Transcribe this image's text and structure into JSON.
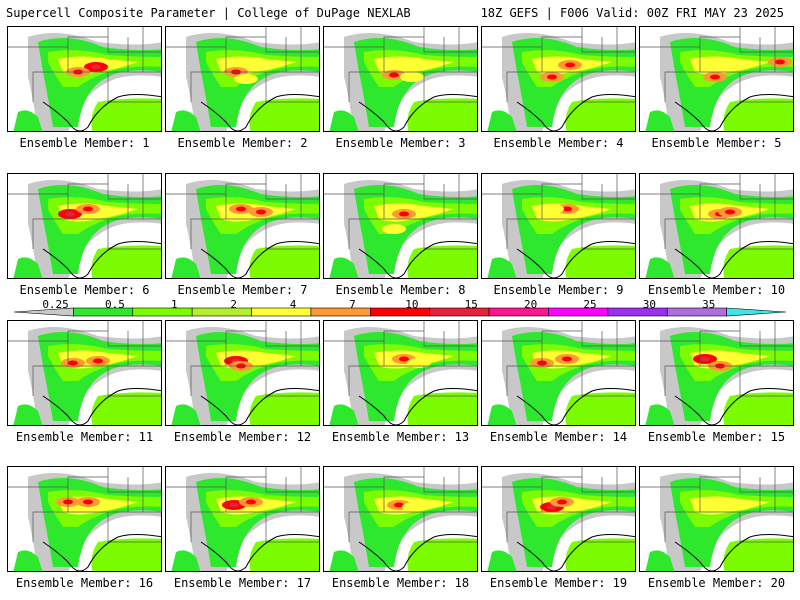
{
  "header": {
    "title": "Supercell Composite Parameter | College of DuPage NEXLAB",
    "valid": "18Z GEFS | F006 Valid: 00Z FRI MAY 23 2025"
  },
  "colorbar": {
    "levels": [
      "0.25",
      "0.5",
      "1",
      "2",
      "4",
      "7",
      "10",
      "15",
      "20",
      "25",
      "30",
      "35"
    ],
    "colors": [
      "#c8c8c8",
      "#2ee82e",
      "#7cfc00",
      "#b4f02a",
      "#ffff33",
      "#ff9933",
      "#ff0000",
      "#e8203c",
      "#ff1493",
      "#ff00ff",
      "#9a2ff0",
      "#b06edc",
      "#3ee6e6"
    ]
  },
  "panels": [
    {
      "label": "Ensemble Member: 1",
      "core": [
        {
          "x": 88,
          "y": 40,
          "v": 10
        },
        {
          "x": 70,
          "y": 45,
          "v": 7
        }
      ]
    },
    {
      "label": "Ensemble Member: 2",
      "core": [
        {
          "x": 70,
          "y": 45,
          "v": 7
        },
        {
          "x": 80,
          "y": 52,
          "v": 4
        }
      ]
    },
    {
      "label": "Ensemble Member: 3",
      "core": [
        {
          "x": 70,
          "y": 48,
          "v": 7
        },
        {
          "x": 88,
          "y": 50,
          "v": 4
        }
      ]
    },
    {
      "label": "Ensemble Member: 4",
      "core": [
        {
          "x": 88,
          "y": 38,
          "v": 7
        },
        {
          "x": 70,
          "y": 50,
          "v": 7
        }
      ]
    },
    {
      "label": "Ensemble Member: 5",
      "core": [
        {
          "x": 75,
          "y": 50,
          "v": 7
        },
        {
          "x": 140,
          "y": 35,
          "v": 7
        }
      ]
    },
    {
      "label": "Ensemble Member: 6",
      "core": [
        {
          "x": 62,
          "y": 40,
          "v": 10
        },
        {
          "x": 80,
          "y": 35,
          "v": 7
        }
      ]
    },
    {
      "label": "Ensemble Member: 7",
      "core": [
        {
          "x": 75,
          "y": 35,
          "v": 7
        },
        {
          "x": 95,
          "y": 38,
          "v": 7
        }
      ]
    },
    {
      "label": "Ensemble Member: 8",
      "core": [
        {
          "x": 80,
          "y": 40,
          "v": 7
        },
        {
          "x": 70,
          "y": 55,
          "v": 4
        }
      ]
    },
    {
      "label": "Ensemble Member: 9",
      "core": [
        {
          "x": 85,
          "y": 35,
          "v": 7
        },
        {
          "x": 70,
          "y": 35,
          "v": 4
        }
      ]
    },
    {
      "label": "Ensemble Member: 10",
      "core": [
        {
          "x": 80,
          "y": 40,
          "v": 7
        },
        {
          "x": 90,
          "y": 38,
          "v": 7
        }
      ]
    },
    {
      "label": "Ensemble Member: 11",
      "core": [
        {
          "x": 65,
          "y": 42,
          "v": 7
        },
        {
          "x": 90,
          "y": 40,
          "v": 7
        }
      ]
    },
    {
      "label": "Ensemble Member: 12",
      "core": [
        {
          "x": 70,
          "y": 40,
          "v": 10
        },
        {
          "x": 75,
          "y": 45,
          "v": 7
        }
      ]
    },
    {
      "label": "Ensemble Member: 13",
      "core": [
        {
          "x": 80,
          "y": 38,
          "v": 7
        },
        {
          "x": 95,
          "y": 42,
          "v": 4
        }
      ]
    },
    {
      "label": "Ensemble Member: 14",
      "core": [
        {
          "x": 85,
          "y": 38,
          "v": 7
        },
        {
          "x": 60,
          "y": 42,
          "v": 7
        }
      ]
    },
    {
      "label": "Ensemble Member: 15",
      "core": [
        {
          "x": 65,
          "y": 38,
          "v": 10
        },
        {
          "x": 80,
          "y": 45,
          "v": 7
        }
      ]
    },
    {
      "label": "Ensemble Member: 16",
      "core": [
        {
          "x": 80,
          "y": 35,
          "v": 7
        },
        {
          "x": 60,
          "y": 35,
          "v": 7
        }
      ]
    },
    {
      "label": "Ensemble Member: 17",
      "core": [
        {
          "x": 68,
          "y": 38,
          "v": 10
        },
        {
          "x": 85,
          "y": 35,
          "v": 7
        }
      ]
    },
    {
      "label": "Ensemble Member: 18",
      "core": [
        {
          "x": 75,
          "y": 38,
          "v": 7
        },
        {
          "x": 90,
          "y": 40,
          "v": 4
        }
      ]
    },
    {
      "label": "Ensemble Member: 19",
      "core": [
        {
          "x": 70,
          "y": 40,
          "v": 10
        },
        {
          "x": 80,
          "y": 35,
          "v": 7
        }
      ]
    },
    {
      "label": "Ensemble Member: 20",
      "core": [
        {
          "x": 70,
          "y": 40,
          "v": 4
        },
        {
          "x": 100,
          "y": 38,
          "v": 4
        }
      ]
    }
  ]
}
